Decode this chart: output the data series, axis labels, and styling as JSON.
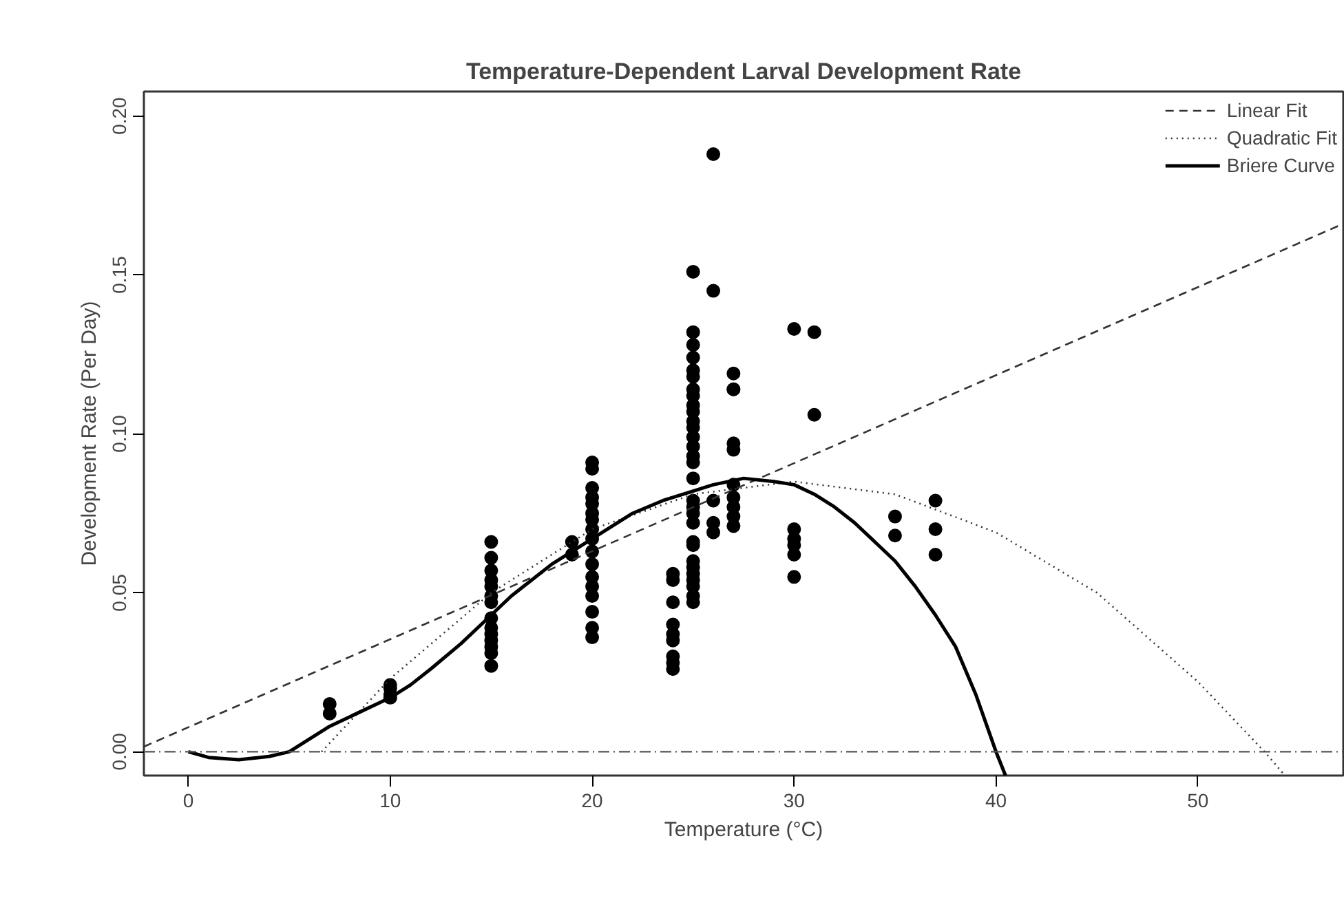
{
  "chart_data": {
    "type": "scatter",
    "title": "Temperature-Dependent Larval Development Rate",
    "xlabel": "Temperature (°C)",
    "ylabel": "Development Rate (Per Day)",
    "xlim": [
      -2.2,
      57.2
    ],
    "ylim": [
      -0.0075,
      0.2077
    ],
    "xticks": [
      0,
      10,
      20,
      30,
      40,
      50
    ],
    "yticks": [
      {
        "value": 0,
        "label": "0.00"
      },
      {
        "value": 0.05,
        "label": "0.05"
      },
      {
        "value": 0.1,
        "label": "0.10"
      },
      {
        "value": 0.15,
        "label": "0.15"
      },
      {
        "value": 0.2,
        "label": "0.20"
      }
    ],
    "grid": false,
    "legend": "top right",
    "ref_lines": [
      {
        "axis": "y",
        "value": 0,
        "label": null,
        "color": "#555555",
        "line_style": "dashdot"
      }
    ],
    "series": [
      {
        "color": "#000000",
        "marker": "circle",
        "x": [
          7,
          7,
          10,
          10,
          10,
          10,
          15,
          15,
          15,
          15,
          15,
          15,
          15,
          15,
          15,
          15,
          15,
          15,
          15,
          15,
          19,
          19,
          20,
          20,
          20,
          20,
          20,
          20,
          20,
          20,
          20,
          20,
          20,
          20,
          20,
          20,
          20,
          20,
          20,
          24,
          24,
          24,
          24,
          24,
          24,
          24,
          24,
          24,
          25,
          25,
          25,
          25,
          25,
          25,
          25,
          25,
          25,
          25,
          25,
          25,
          25,
          25,
          25,
          25,
          25,
          25,
          25,
          25,
          25,
          25,
          25,
          25,
          25,
          25,
          25,
          25,
          25,
          25,
          26,
          26,
          26,
          26,
          26,
          27,
          27,
          27,
          27,
          27,
          27,
          27,
          27,
          27,
          27,
          30,
          30,
          30,
          30,
          30,
          30,
          31,
          31,
          35,
          35,
          37,
          37,
          37
        ],
        "values": [
          0.015,
          0.012,
          0.021,
          0.02,
          0.018,
          0.017,
          0.066,
          0.061,
          0.057,
          0.054,
          0.052,
          0.049,
          0.047,
          0.042,
          0.039,
          0.037,
          0.035,
          0.033,
          0.031,
          0.027,
          0.066,
          0.062,
          0.091,
          0.089,
          0.083,
          0.08,
          0.078,
          0.075,
          0.073,
          0.07,
          0.067,
          0.063,
          0.059,
          0.055,
          0.052,
          0.049,
          0.044,
          0.039,
          0.036,
          0.056,
          0.054,
          0.047,
          0.04,
          0.037,
          0.035,
          0.03,
          0.028,
          0.026,
          0.151,
          0.132,
          0.128,
          0.124,
          0.12,
          0.118,
          0.114,
          0.112,
          0.109,
          0.107,
          0.104,
          0.102,
          0.099,
          0.096,
          0.093,
          0.091,
          0.086,
          0.079,
          0.077,
          0.075,
          0.072,
          0.066,
          0.065,
          0.06,
          0.058,
          0.056,
          0.054,
          0.052,
          0.049,
          0.047,
          0.188,
          0.145,
          0.079,
          0.072,
          0.069,
          0.119,
          0.114,
          0.114,
          0.097,
          0.095,
          0.084,
          0.08,
          0.077,
          0.074,
          0.071,
          0.133,
          0.07,
          0.067,
          0.065,
          0.062,
          0.055,
          0.132,
          0.106,
          0.074,
          0.068,
          0.079,
          0.07,
          0.062
        ]
      },
      {
        "type": "line",
        "name": "Linear Fit",
        "color": "#333333",
        "line_style": "dashed",
        "x": [
          -2.2,
          57.2
        ],
        "values": [
          0.0016,
          0.1661
        ]
      },
      {
        "type": "line",
        "name": "Quadratic Fit",
        "color": "#333333",
        "line_style": "dotted",
        "x": [
          6.6,
          10,
          15,
          20,
          25,
          30,
          35,
          40,
          45,
          50,
          53.3,
          54.2
        ],
        "values": [
          0,
          0.023,
          0.05,
          0.07,
          0.081,
          0.085,
          0.081,
          0.069,
          0.05,
          0.022,
          0,
          -0.0067
        ]
      },
      {
        "type": "line",
        "name": "Briere Curve",
        "color": "#000000",
        "line_style": "solid",
        "x": [
          0,
          1,
          2.5,
          4,
          5,
          6,
          7,
          8.5,
          10,
          11,
          12,
          13.5,
          15,
          16,
          17,
          18,
          19,
          20,
          21,
          22,
          23.5,
          25,
          26,
          27.5,
          29,
          30,
          31,
          32,
          33,
          34,
          35,
          36,
          37,
          38,
          39,
          40,
          40.47
        ],
        "values": [
          0,
          -0.0018,
          -0.0025,
          -0.0015,
          0,
          0.004,
          0.008,
          0.0125,
          0.017,
          0.021,
          0.026,
          0.034,
          0.043,
          0.049,
          0.054,
          0.059,
          0.063,
          0.067,
          0.071,
          0.075,
          0.079,
          0.082,
          0.084,
          0.086,
          0.085,
          0.084,
          0.081,
          0.077,
          0.072,
          0.066,
          0.06,
          0.052,
          0.043,
          0.033,
          0.018,
          0,
          -0.0075
        ]
      }
    ]
  }
}
